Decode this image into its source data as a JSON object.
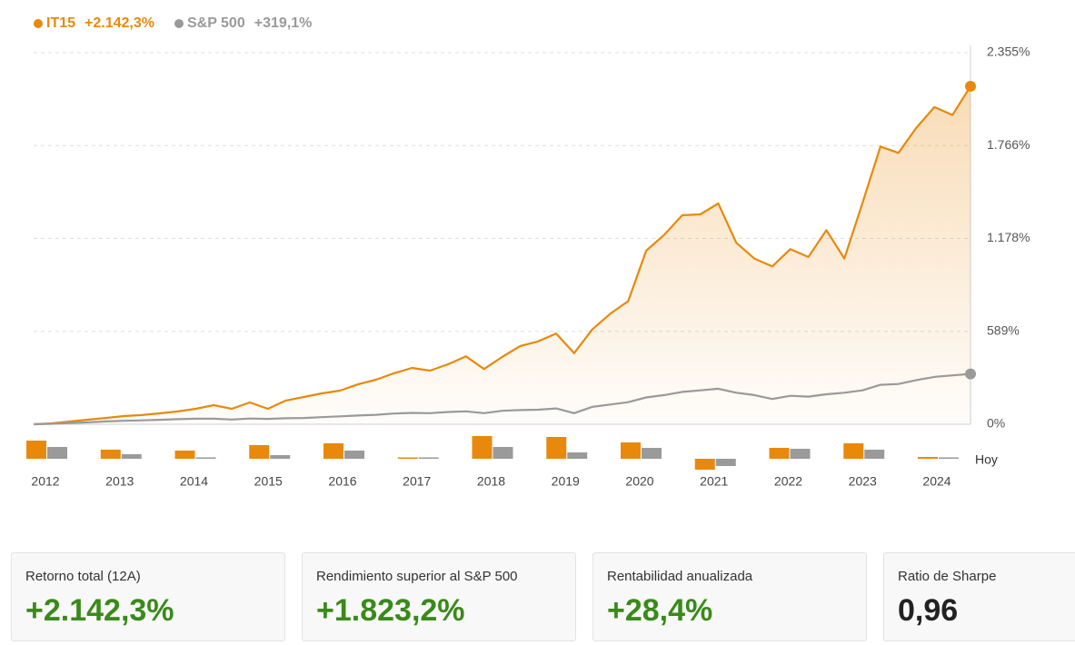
{
  "chart_data": [
    {
      "type": "line",
      "series": [
        {
          "name": "IT15",
          "color": "#e8890c",
          "last_label": "+2.142,3%",
          "area": true,
          "values": [
            0,
            6,
            17,
            29,
            40,
            52,
            58,
            69,
            81,
            98,
            121,
            98,
            138,
            98,
            150,
            173,
            196,
            213,
            253,
            282,
            323,
            357,
            340,
            380,
            430,
            350,
            426,
            495,
            525,
            575,
            450,
            600,
            700,
            780,
            1100,
            1200,
            1325,
            1330,
            1400,
            1150,
            1050,
            1000,
            1110,
            1060,
            1230,
            1050,
            1400,
            1760,
            1720,
            1880,
            2010,
            1960,
            2142.3
          ]
        },
        {
          "name": "S&P 500",
          "color": "#9a9a9a",
          "last_label": "+319,1%",
          "area": false,
          "values": [
            0,
            3,
            8,
            12,
            18,
            22,
            25,
            28,
            32,
            35,
            35,
            30,
            36,
            34,
            38,
            40,
            45,
            50,
            55,
            60,
            68,
            72,
            70,
            78,
            82,
            70,
            85,
            90,
            92,
            100,
            70,
            110,
            125,
            140,
            170,
            185,
            205,
            215,
            225,
            200,
            185,
            160,
            180,
            175,
            190,
            200,
            215,
            250,
            255,
            280,
            300,
            310,
            319.1
          ]
        }
      ],
      "ylim": [
        0,
        2355
      ],
      "yticks": [
        {
          "value": 0,
          "label": "0%"
        },
        {
          "value": 589,
          "label": "589%"
        },
        {
          "value": 1178,
          "label": "1.178%"
        },
        {
          "value": 1766,
          "label": "1.766%"
        },
        {
          "value": 2355,
          "label": "2.355%"
        }
      ],
      "grid": true
    },
    {
      "type": "bar",
      "categories": [
        "2012",
        "2013",
        "2014",
        "2015",
        "2016",
        "2017",
        "2018",
        "2019",
        "2020",
        "2021",
        "2022",
        "2023",
        "2024"
      ],
      "series": [
        {
          "name": "IT15",
          "color": "#e8890c",
          "values": [
            40,
            20,
            18,
            30,
            34,
            2,
            50,
            48,
            36,
            -24,
            24,
            34,
            4
          ]
        },
        {
          "name": "S&P 500",
          "color": "#9a9a9a",
          "values": [
            26,
            10,
            2,
            8,
            18,
            2,
            26,
            14,
            24,
            -16,
            22,
            20,
            2
          ]
        }
      ],
      "ylim": [
        -30,
        50
      ],
      "annotation": "Hoy"
    }
  ],
  "stats": [
    {
      "label": "Retorno total (12A)",
      "value": "+2.142,3%",
      "color": "#3a8a1a"
    },
    {
      "label": "Rendimiento superior al S&P 500",
      "value": "+1.823,2%",
      "color": "#3a8a1a"
    },
    {
      "label": "Rentabilidad anualizada",
      "value": "+28,4%",
      "color": "#3a8a1a"
    },
    {
      "label": "Ratio de Sharpe",
      "value": "0,96",
      "color": "#222222"
    }
  ]
}
